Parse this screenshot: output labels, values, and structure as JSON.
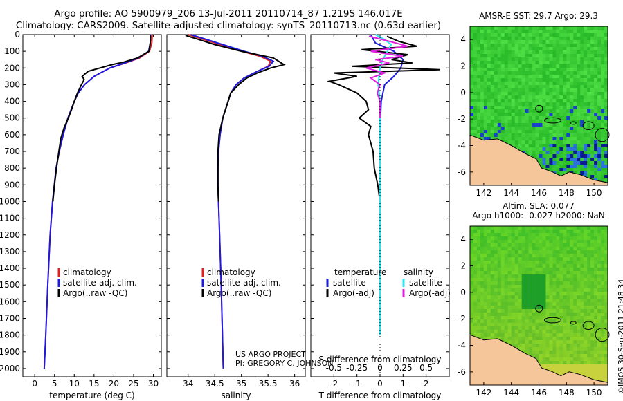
{
  "header": {
    "line1": "Argo profile: AO 5900979_206 13-Jul-2011 20110714_87 1.219S 146.017E",
    "line2": "Climatology: CARS2009. Satellite-adjusted climatology: synTS_20110713.nc (0.63d earlier)"
  },
  "signature": {
    "line1": "US ARGO PROJECT",
    "line2": "PI: GREGORY C. JOHNSON"
  },
  "timestamp": "©IMOS 30-Sep-2011 21:48:34",
  "colors": {
    "climatology": "#e02020",
    "satellite": "#1a1ae0",
    "argo": "#000000",
    "satellite_s": "#22e8f0",
    "argo_s": "#e020e0",
    "land": "#f5c69a",
    "ocean_mid": "#3cd03c"
  },
  "chart_data": [
    {
      "type": "line",
      "xlabel": "temperature (deg C)",
      "ylabel": "",
      "xlim": [
        -3,
        32
      ],
      "ylim": [
        2050,
        0
      ],
      "xticks": [
        0,
        5,
        10,
        15,
        20,
        25,
        30
      ],
      "yticks": [
        0,
        100,
        200,
        300,
        400,
        500,
        600,
        700,
        800,
        900,
        1000,
        1100,
        1200,
        1300,
        1400,
        1500,
        1600,
        1700,
        1800,
        1900,
        2000
      ],
      "legend": [
        "climatology",
        "satellite-adj. clim.",
        "Argo(..raw -QC)"
      ],
      "legend_position": "lower-center",
      "series": [
        {
          "name": "climatology",
          "color": "climatology",
          "depth": [
            0,
            50,
            100,
            140,
            170,
            200,
            250,
            300,
            350,
            400,
            500,
            600,
            700,
            800,
            1000,
            1200,
            1500,
            1800,
            2000
          ],
          "values": [
            29.7,
            29.6,
            29.0,
            26.5,
            23.0,
            19.0,
            15.0,
            12.6,
            11.0,
            10.0,
            8.4,
            7.2,
            6.2,
            5.4,
            4.5,
            3.9,
            3.3,
            2.8,
            2.4
          ]
        },
        {
          "name": "satellite-adj. clim.",
          "color": "satellite",
          "depth": [
            0,
            50,
            100,
            140,
            170,
            200,
            250,
            300,
            350,
            400,
            500,
            600,
            700,
            800,
            1000,
            1200,
            1500,
            1800,
            2000
          ],
          "values": [
            29.3,
            29.2,
            28.8,
            26.2,
            22.8,
            19.0,
            15.0,
            12.6,
            11.0,
            10.0,
            8.4,
            7.2,
            6.2,
            5.4,
            4.5,
            3.9,
            3.3,
            2.8,
            2.4
          ]
        },
        {
          "name": "Argo(..raw -QC)",
          "color": "argo",
          "depth": [
            5,
            50,
            100,
            140,
            165,
            180,
            200,
            220,
            250,
            270,
            300,
            350,
            400,
            450,
            500,
            560,
            620,
            700,
            800,
            900,
            1000
          ],
          "values": [
            29.3,
            29.2,
            28.9,
            26.0,
            22.5,
            19.5,
            16.5,
            13.5,
            12.0,
            12.5,
            11.8,
            10.8,
            10.0,
            9.3,
            8.5,
            7.4,
            6.6,
            6.1,
            5.5,
            5.0,
            4.6
          ]
        }
      ]
    },
    {
      "type": "line",
      "xlabel": "salinity",
      "ylabel": "",
      "xlim": [
        33.6,
        36.2
      ],
      "ylim": [
        2050,
        0
      ],
      "xticks": [
        34,
        34.5,
        35,
        35.5,
        36
      ],
      "legend": [
        "climatology",
        "satellite-adj. clim.",
        "Argo(..raw -QC)"
      ],
      "legend_position": "lower-center",
      "series": [
        {
          "name": "climatology",
          "color": "climatology",
          "depth": [
            0,
            30,
            60,
            100,
            130,
            160,
            190,
            220,
            260,
            300,
            350,
            400,
            500,
            600,
            700,
            800,
            900,
            1000,
            1200,
            1500,
            2000
          ],
          "values": [
            34.0,
            34.3,
            34.6,
            35.0,
            35.35,
            35.55,
            35.5,
            35.3,
            35.05,
            34.9,
            34.8,
            34.75,
            34.65,
            34.6,
            34.57,
            34.56,
            34.56,
            34.57,
            34.59,
            34.62,
            34.66
          ]
        },
        {
          "name": "satellite-adj. clim.",
          "color": "satellite",
          "depth": [
            0,
            30,
            60,
            100,
            130,
            160,
            190,
            220,
            260,
            300,
            350,
            400,
            500,
            600,
            700,
            800,
            900,
            1000,
            1200,
            1500,
            2000
          ],
          "values": [
            34.05,
            34.35,
            34.65,
            35.05,
            35.4,
            35.6,
            35.52,
            35.3,
            35.05,
            34.9,
            34.8,
            34.75,
            34.65,
            34.6,
            34.57,
            34.56,
            34.56,
            34.57,
            34.59,
            34.62,
            34.66
          ]
        },
        {
          "name": "Argo(..raw -QC)",
          "color": "argo",
          "depth": [
            5,
            30,
            60,
            100,
            120,
            140,
            160,
            180,
            200,
            230,
            260,
            300,
            350,
            400,
            500,
            600,
            700,
            800,
            900,
            1000
          ],
          "values": [
            33.95,
            34.2,
            34.5,
            35.0,
            35.3,
            35.6,
            35.7,
            35.8,
            35.55,
            35.3,
            35.1,
            34.95,
            34.8,
            34.75,
            34.65,
            34.58,
            34.56,
            34.56,
            34.56,
            34.57
          ]
        }
      ]
    },
    {
      "type": "line",
      "xlabel": "T difference from climatology",
      "x2label": "S difference from climatology",
      "ylabel": "",
      "xlim": [
        -3,
        3
      ],
      "ylim": [
        2050,
        0
      ],
      "xticks": [
        -2,
        -1,
        0,
        1,
        2
      ],
      "x2ticks": [
        "-0.5",
        "-0.25",
        "0",
        "0.25",
        "0.5"
      ],
      "x2_values": [
        -0.5,
        -0.25,
        0,
        0.25,
        0.5
      ],
      "legend_groups": [
        {
          "title": "temperature",
          "items": [
            "satellite",
            "Argo(-adj)"
          ]
        },
        {
          "title": "salinity",
          "items": [
            "satellite",
            "Argo(-adj)"
          ]
        }
      ],
      "legend_position": "lower-center",
      "series": [
        {
          "name": "satellite",
          "group": "temperature",
          "color": "satellite",
          "depth": [
            0,
            50,
            100,
            150,
            200,
            250,
            300,
            400,
            500,
            600,
            800,
            1000,
            1200,
            1500,
            1800
          ],
          "values": [
            -0.4,
            -0.2,
            0.6,
            1.0,
            0.9,
            0.6,
            0.2,
            0.05,
            0.02,
            0.0,
            0.0,
            0.0,
            0.0,
            0.0,
            0.0
          ]
        },
        {
          "name": "Argo(-adj)",
          "group": "temperature",
          "color": "argo",
          "depth": [
            10,
            40,
            70,
            90,
            120,
            150,
            170,
            190,
            210,
            230,
            250,
            280,
            300,
            350,
            400,
            450,
            500,
            550,
            600,
            650,
            700,
            800,
            900,
            1000
          ],
          "values": [
            0.3,
            0.8,
            1.6,
            -0.8,
            1.2,
            0.5,
            1.4,
            -1.2,
            2.6,
            -2.0,
            -1.0,
            -2.2,
            -1.8,
            -1.0,
            -0.6,
            -0.5,
            -0.9,
            -0.4,
            -0.5,
            -0.4,
            -0.3,
            -0.25,
            -0.1,
            0.0
          ]
        },
        {
          "name": "satellite",
          "group": "salinity",
          "color": "satellite_s",
          "depth": [
            0,
            30,
            60,
            100,
            150,
            200,
            300,
            400,
            500,
            600,
            800,
            1000,
            1500,
            1800
          ],
          "values": [
            -0.05,
            0.05,
            0.12,
            0.08,
            0.03,
            0.0,
            -0.02,
            0.0,
            0.0,
            0.0,
            0.0,
            0.0,
            0.0,
            0.0
          ]
        },
        {
          "name": "Argo(-adj)",
          "group": "salinity",
          "color": "argo_s",
          "depth": [
            10,
            40,
            70,
            100,
            130,
            150,
            170,
            200,
            230,
            260,
            300,
            350,
            400,
            500
          ],
          "values": [
            -0.12,
            0.1,
            0.3,
            -0.1,
            0.25,
            -0.05,
            0.1,
            -0.15,
            0.05,
            -0.1,
            0.0,
            -0.03,
            0.0,
            0.0
          ]
        }
      ]
    },
    {
      "type": "heatmap",
      "title": "AMSR-E SST: 29.7 Argo: 29.3",
      "xlim": [
        141,
        151
      ],
      "ylim": [
        -7,
        5
      ],
      "xticks": [
        142,
        144,
        146,
        148,
        150
      ],
      "yticks": [
        -6,
        -4,
        -2,
        0,
        2,
        4
      ],
      "float_position": [
        146.017,
        -1.219
      ]
    },
    {
      "type": "heatmap",
      "title": "Altim. SLA: 0.077",
      "subtitle": "Argo h1000: -0.027 h2000: NaN",
      "xlim": [
        141,
        151
      ],
      "ylim": [
        -7,
        5
      ],
      "xticks": [
        142,
        144,
        146,
        148,
        150
      ],
      "yticks": [
        -6,
        -4,
        -2,
        0,
        2,
        4
      ],
      "float_position": [
        146.017,
        -1.219
      ]
    }
  ]
}
